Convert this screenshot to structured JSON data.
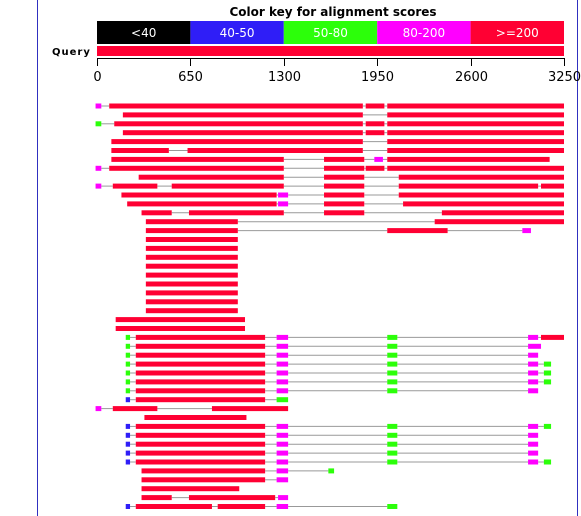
{
  "chart_data": {
    "type": "alignment-overview",
    "title": "Color key for alignment scores",
    "color_key": [
      {
        "label": "<40",
        "color": "#000000"
      },
      {
        "label": "40-50",
        "color": "#2f1ef7"
      },
      {
        "label": "50-80",
        "color": "#2cff0a"
      },
      {
        "label": "80-200",
        "color": "#ff00ff"
      },
      {
        "label": ">=200",
        "color": "#ff0033"
      }
    ],
    "query_label": "Query",
    "query_range": [
      0,
      3250
    ],
    "axis_ticks": [
      {
        "value": 0,
        "label": "0"
      },
      {
        "value": 650,
        "label": "650"
      },
      {
        "value": 1300,
        "label": "1300"
      },
      {
        "value": 1950,
        "label": "1950"
      },
      {
        "value": 2600,
        "label": "2600"
      },
      {
        "value": 3250,
        "label": "3250"
      }
    ],
    "hits": [
      {
        "row": 0,
        "segments": [
          [
            "m",
            -10,
            30
          ],
          [
            "r",
            85,
            1850
          ],
          [
            "r",
            1870,
            2000
          ],
          [
            "r",
            2020,
            3250
          ]
        ]
      },
      {
        "row": 1,
        "segments": [
          [
            "r",
            180,
            1850
          ],
          [
            "r",
            2020,
            3250
          ]
        ]
      },
      {
        "row": 2,
        "segments": [
          [
            "g",
            -10,
            30
          ],
          [
            "r",
            120,
            1850
          ],
          [
            "r",
            1870,
            2000
          ],
          [
            "r",
            2020,
            3250
          ]
        ]
      },
      {
        "row": 3,
        "segments": [
          [
            "r",
            180,
            1850
          ],
          [
            "r",
            1870,
            2000
          ],
          [
            "r",
            2020,
            3250
          ]
        ]
      },
      {
        "row": 4,
        "segments": [
          [
            "r",
            100,
            1850
          ],
          [
            "r",
            2020,
            3250
          ]
        ]
      },
      {
        "row": 5,
        "segments": [
          [
            "r",
            100,
            500
          ],
          [
            "r",
            630,
            1850
          ],
          [
            "r",
            2020,
            3250
          ]
        ]
      },
      {
        "row": 6,
        "segments": [
          [
            "r",
            100,
            1300
          ],
          [
            "r",
            1580,
            1860
          ],
          [
            "m",
            1930,
            1990
          ],
          [
            "r",
            2020,
            3150
          ]
        ]
      },
      {
        "row": 7,
        "segments": [
          [
            "m",
            -10,
            30
          ],
          [
            "r",
            85,
            1300
          ],
          [
            "r",
            1580,
            1860
          ],
          [
            "r",
            1870,
            2000
          ],
          [
            "r",
            2020,
            3250
          ]
        ]
      },
      {
        "row": 8,
        "segments": [
          [
            "r",
            290,
            1300
          ],
          [
            "r",
            1580,
            1860
          ],
          [
            "r",
            2100,
            3250
          ]
        ]
      },
      {
        "row": 9,
        "segments": [
          [
            "m",
            -10,
            30
          ],
          [
            "r",
            110,
            420
          ],
          [
            "r",
            520,
            1300
          ],
          [
            "r",
            1580,
            1860
          ],
          [
            "r",
            2100,
            3070
          ],
          [
            "r",
            3090,
            3250
          ]
        ]
      },
      {
        "row": 10,
        "segments": [
          [
            "r",
            170,
            1250
          ],
          [
            "m",
            1260,
            1330
          ],
          [
            "r",
            1580,
            1860
          ],
          [
            "r",
            2100,
            3250
          ]
        ]
      },
      {
        "row": 11,
        "segments": [
          [
            "r",
            210,
            1250
          ],
          [
            "m",
            1260,
            1330
          ],
          [
            "r",
            1580,
            1860
          ],
          [
            "r",
            2130,
            3250
          ]
        ]
      },
      {
        "row": 12,
        "segments": [
          [
            "r",
            310,
            520
          ],
          [
            "r",
            640,
            1300
          ],
          [
            "r",
            1580,
            1860
          ],
          [
            "r",
            2400,
            3250
          ]
        ]
      },
      {
        "row": 13,
        "segments": [
          [
            "r",
            340,
            980
          ],
          [
            "r",
            2350,
            3250
          ]
        ]
      },
      {
        "row": 14,
        "segments": [
          [
            "r",
            340,
            980
          ],
          [
            "r",
            2020,
            2440
          ],
          [
            "m",
            2960,
            3020
          ]
        ]
      },
      {
        "row": 15,
        "segments": [
          [
            "r",
            340,
            980
          ]
        ]
      },
      {
        "row": 16,
        "segments": [
          [
            "r",
            340,
            980
          ]
        ]
      },
      {
        "row": 17,
        "segments": [
          [
            "r",
            340,
            980
          ]
        ]
      },
      {
        "row": 18,
        "segments": [
          [
            "r",
            340,
            980
          ]
        ]
      },
      {
        "row": 19,
        "segments": [
          [
            "r",
            340,
            980
          ]
        ]
      },
      {
        "row": 20,
        "segments": [
          [
            "r",
            340,
            980
          ]
        ]
      },
      {
        "row": 21,
        "segments": [
          [
            "r",
            340,
            980
          ]
        ]
      },
      {
        "row": 22,
        "segments": [
          [
            "r",
            340,
            980
          ]
        ]
      },
      {
        "row": 23,
        "segments": [
          [
            "r",
            340,
            980
          ]
        ]
      },
      {
        "row": 24,
        "segments": [
          [
            "r",
            130,
            1030
          ]
        ]
      },
      {
        "row": 25,
        "segments": [
          [
            "r",
            130,
            1030
          ]
        ]
      },
      {
        "row": 26,
        "segments": [
          [
            "g",
            200,
            230
          ],
          [
            "r",
            270,
            1170
          ],
          [
            "m",
            1250,
            1330
          ],
          [
            "g",
            2020,
            2090
          ],
          [
            "m",
            3000,
            3070
          ],
          [
            "r",
            3090,
            3250
          ]
        ]
      },
      {
        "row": 27,
        "segments": [
          [
            "g",
            200,
            230
          ],
          [
            "r",
            270,
            1170
          ],
          [
            "m",
            1250,
            1330
          ],
          [
            "g",
            2020,
            2090
          ],
          [
            "m",
            3000,
            3090
          ]
        ]
      },
      {
        "row": 28,
        "segments": [
          [
            "g",
            200,
            230
          ],
          [
            "r",
            270,
            1170
          ],
          [
            "m",
            1250,
            1330
          ],
          [
            "g",
            2020,
            2090
          ],
          [
            "m",
            3000,
            3070
          ]
        ]
      },
      {
        "row": 29,
        "segments": [
          [
            "g",
            200,
            230
          ],
          [
            "r",
            270,
            1170
          ],
          [
            "m",
            1250,
            1330
          ],
          [
            "g",
            2020,
            2090
          ],
          [
            "m",
            3000,
            3070
          ],
          [
            "g",
            3110,
            3160
          ]
        ]
      },
      {
        "row": 30,
        "segments": [
          [
            "g",
            200,
            230
          ],
          [
            "r",
            270,
            1170
          ],
          [
            "m",
            1250,
            1330
          ],
          [
            "g",
            2020,
            2090
          ],
          [
            "m",
            3000,
            3070
          ],
          [
            "g",
            3110,
            3160
          ]
        ]
      },
      {
        "row": 31,
        "segments": [
          [
            "g",
            200,
            230
          ],
          [
            "r",
            270,
            1170
          ],
          [
            "m",
            1250,
            1330
          ],
          [
            "g",
            2020,
            2090
          ],
          [
            "m",
            3000,
            3070
          ],
          [
            "g",
            3110,
            3160
          ]
        ]
      },
      {
        "row": 32,
        "segments": [
          [
            "g",
            200,
            230
          ],
          [
            "r",
            270,
            1170
          ],
          [
            "m",
            1250,
            1330
          ],
          [
            "g",
            2020,
            2090
          ],
          [
            "m",
            3000,
            3070
          ]
        ]
      },
      {
        "row": 33,
        "segments": [
          [
            "b",
            200,
            230
          ],
          [
            "r",
            270,
            1170
          ],
          [
            "g",
            1250,
            1330
          ]
        ]
      },
      {
        "row": 34,
        "segments": [
          [
            "m",
            -10,
            30
          ],
          [
            "r",
            110,
            420
          ],
          [
            "r",
            800,
            1330
          ]
        ]
      },
      {
        "row": 35,
        "segments": [
          [
            "r",
            330,
            1040
          ]
        ]
      },
      {
        "row": 36,
        "segments": [
          [
            "b",
            200,
            230
          ],
          [
            "r",
            270,
            1170
          ],
          [
            "m",
            1250,
            1330
          ],
          [
            "g",
            2020,
            2090
          ],
          [
            "m",
            3000,
            3070
          ],
          [
            "g",
            3110,
            3160
          ]
        ]
      },
      {
        "row": 37,
        "segments": [
          [
            "b",
            200,
            230
          ],
          [
            "r",
            270,
            1170
          ],
          [
            "m",
            1250,
            1330
          ],
          [
            "g",
            2020,
            2090
          ],
          [
            "m",
            3000,
            3070
          ]
        ]
      },
      {
        "row": 38,
        "segments": [
          [
            "b",
            200,
            230
          ],
          [
            "r",
            270,
            1170
          ],
          [
            "m",
            1250,
            1330
          ],
          [
            "g",
            2020,
            2090
          ],
          [
            "m",
            3000,
            3070
          ]
        ]
      },
      {
        "row": 39,
        "segments": [
          [
            "b",
            200,
            230
          ],
          [
            "r",
            270,
            1170
          ],
          [
            "m",
            1250,
            1330
          ],
          [
            "g",
            2020,
            2090
          ],
          [
            "m",
            3000,
            3070
          ]
        ]
      },
      {
        "row": 40,
        "segments": [
          [
            "b",
            200,
            230
          ],
          [
            "r",
            270,
            1170
          ],
          [
            "m",
            1250,
            1330
          ],
          [
            "g",
            2020,
            2090
          ],
          [
            "m",
            3000,
            3070
          ],
          [
            "g",
            3110,
            3160
          ]
        ]
      },
      {
        "row": 41,
        "segments": [
          [
            "r",
            310,
            1170
          ],
          [
            "m",
            1250,
            1330
          ],
          [
            "g",
            1610,
            1650
          ]
        ]
      },
      {
        "row": 42,
        "segments": [
          [
            "r",
            310,
            1170
          ],
          [
            "m",
            1250,
            1330
          ]
        ]
      },
      {
        "row": 43,
        "segments": [
          [
            "r",
            310,
            990
          ]
        ]
      },
      {
        "row": 44,
        "segments": [
          [
            "r",
            310,
            520
          ],
          [
            "r",
            640,
            1240
          ],
          [
            "m",
            1260,
            1330
          ]
        ]
      },
      {
        "row": 45,
        "segments": [
          [
            "b",
            200,
            230
          ],
          [
            "r",
            270,
            800
          ],
          [
            "r",
            840,
            1170
          ],
          [
            "m",
            1250,
            1330
          ],
          [
            "g",
            2020,
            2090
          ]
        ]
      }
    ]
  }
}
